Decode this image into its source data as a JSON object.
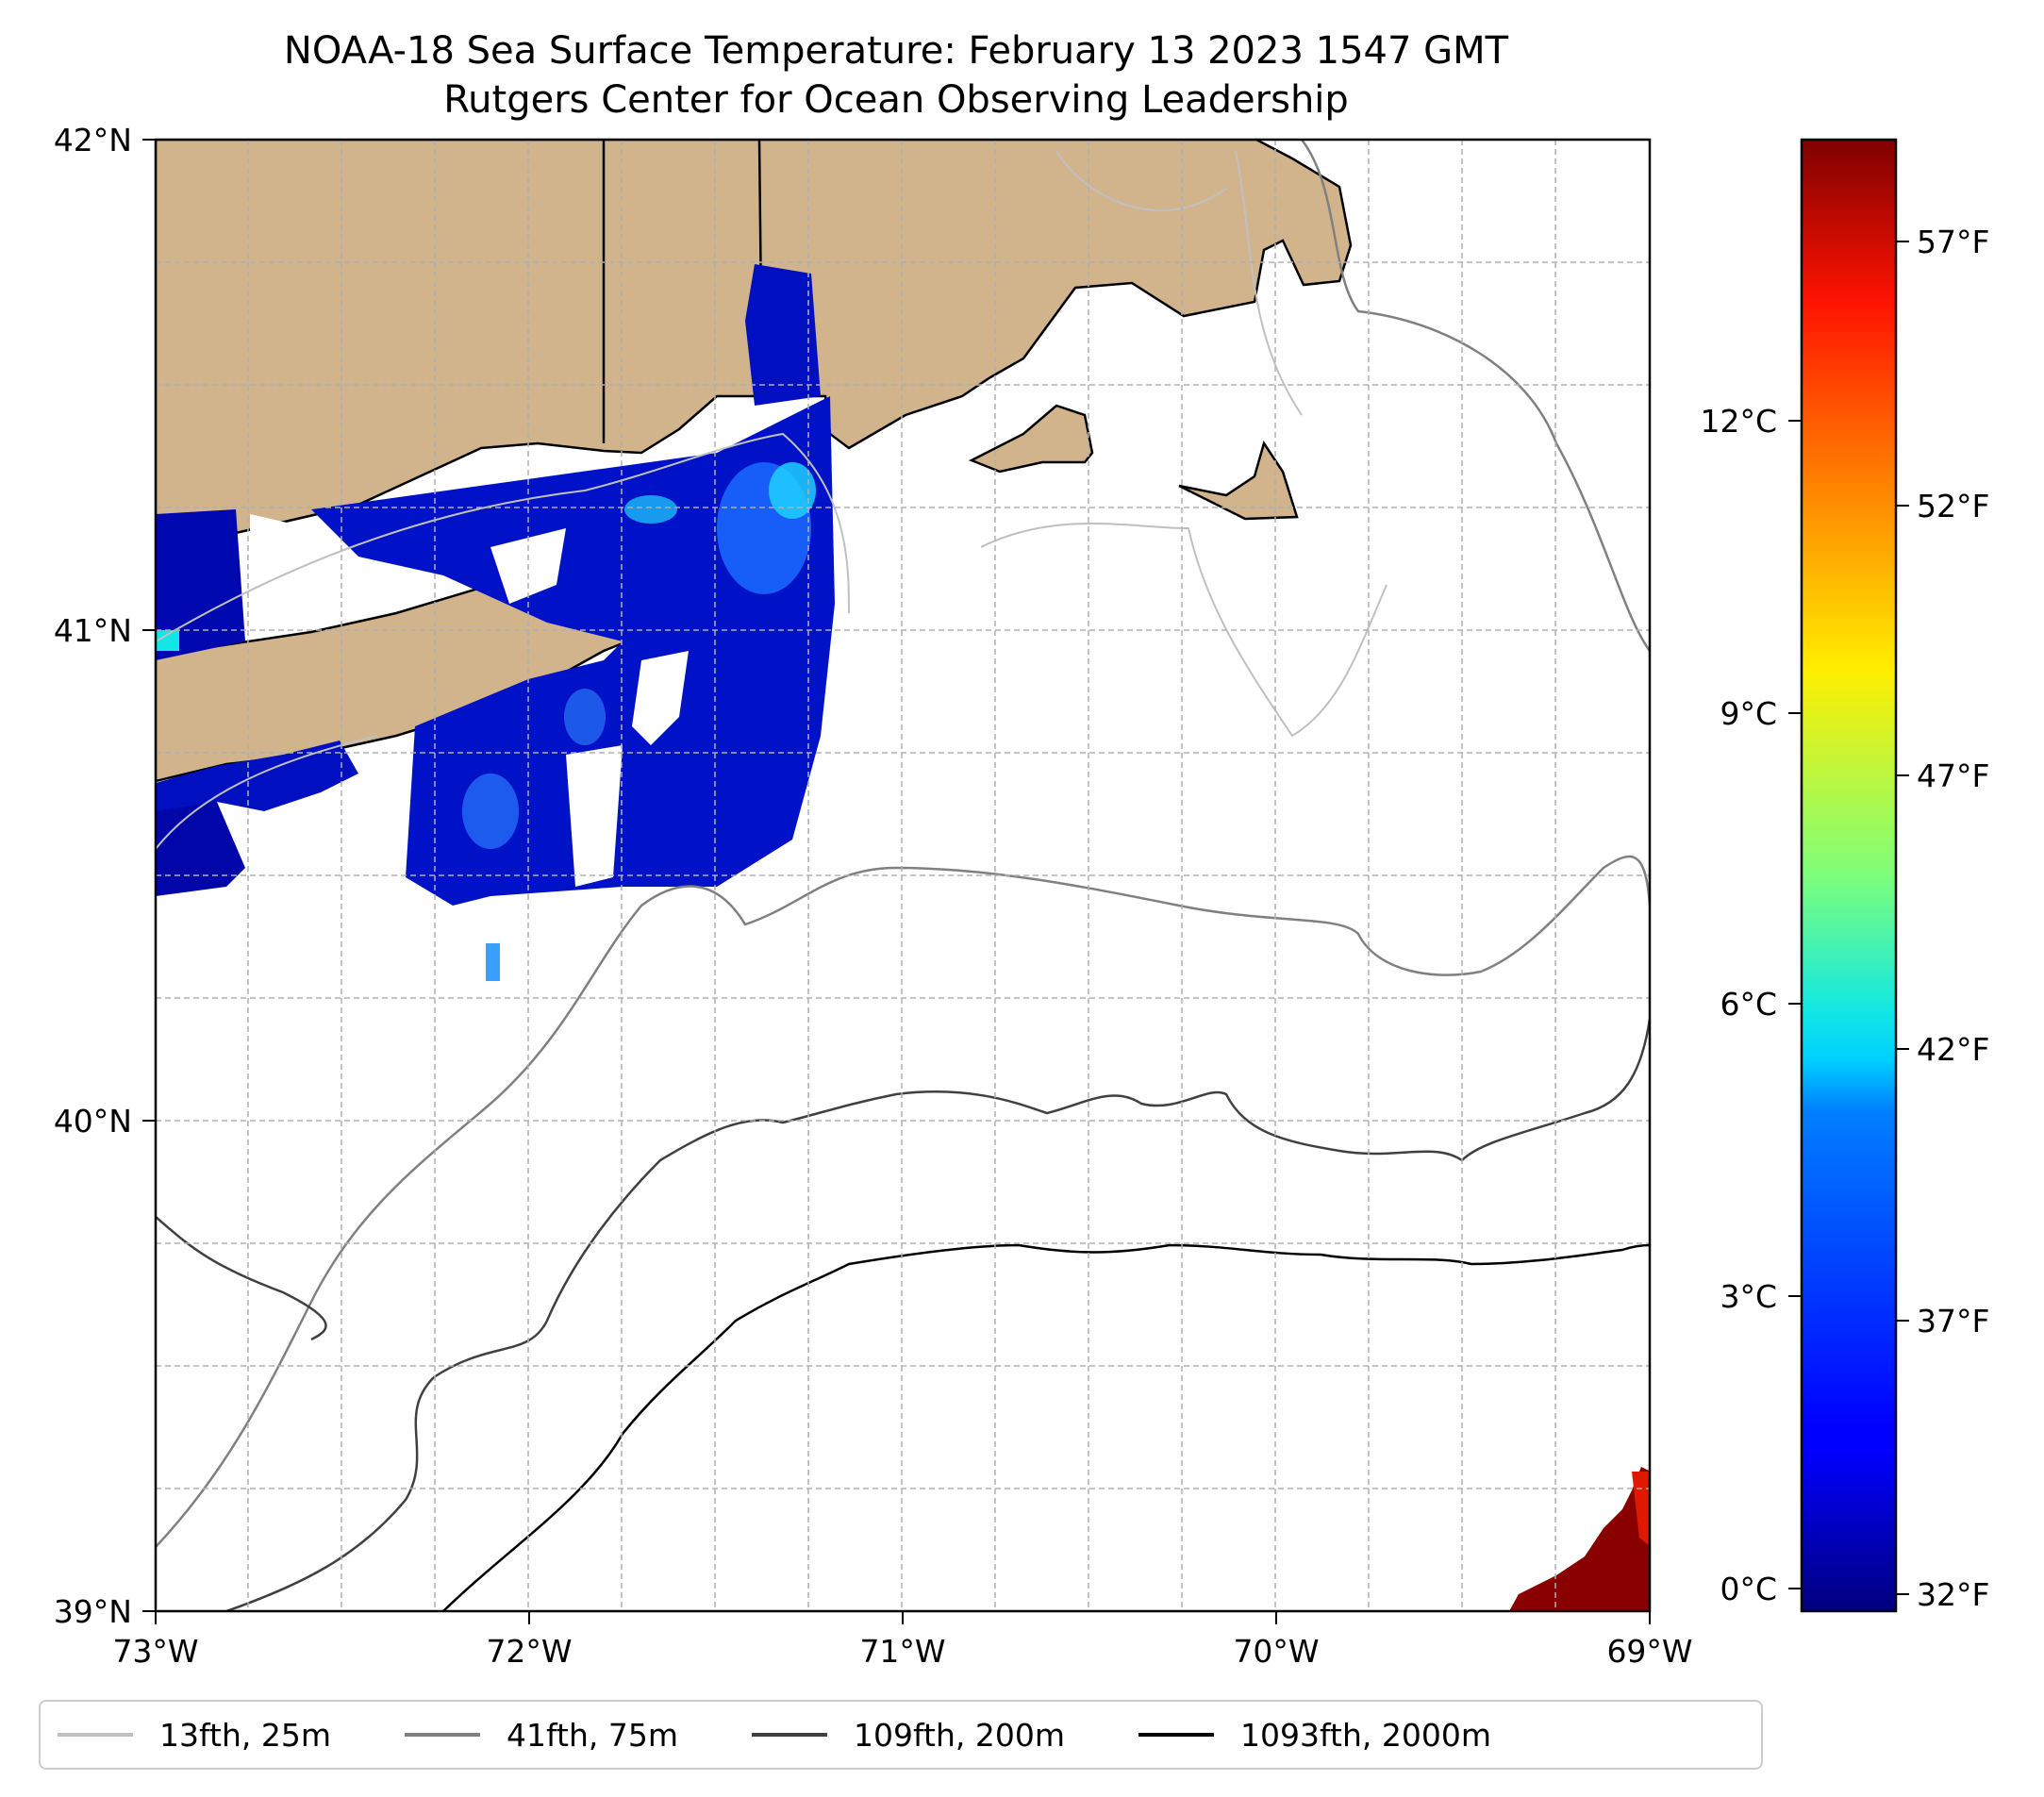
{
  "title": {
    "line1": "NOAA-18 Sea Surface Temperature: February 13 2023 1547 GMT",
    "line2": "Rutgers Center for Ocean Observing Leadership"
  },
  "map": {
    "lon_range": [
      -73,
      -69
    ],
    "lat_range": [
      39,
      42
    ],
    "x_ticks": [
      "73°W",
      "72°W",
      "71°W",
      "70°W",
      "69°W"
    ],
    "y_ticks": [
      "39°N",
      "40°N",
      "41°N",
      "42°N"
    ],
    "gridlines": true,
    "land_color": "#d2b48c",
    "coastline_color": "#000000"
  },
  "colorbar": {
    "colormap": "jet",
    "celsius_ticks": [
      "0°C",
      "3°C",
      "6°C",
      "9°C",
      "12°C"
    ],
    "fahrenheit_ticks": [
      "32°F",
      "37°F",
      "42°F",
      "47°F",
      "52°F",
      "57°F"
    ]
  },
  "legend": {
    "items": [
      {
        "label": "13fth, 25m",
        "color": "#c0c0c0"
      },
      {
        "label": "41fth, 75m",
        "color": "#808080"
      },
      {
        "label": "109fth, 200m",
        "color": "#404040"
      },
      {
        "label": "1093fth, 2000m",
        "color": "#000000"
      }
    ]
  }
}
